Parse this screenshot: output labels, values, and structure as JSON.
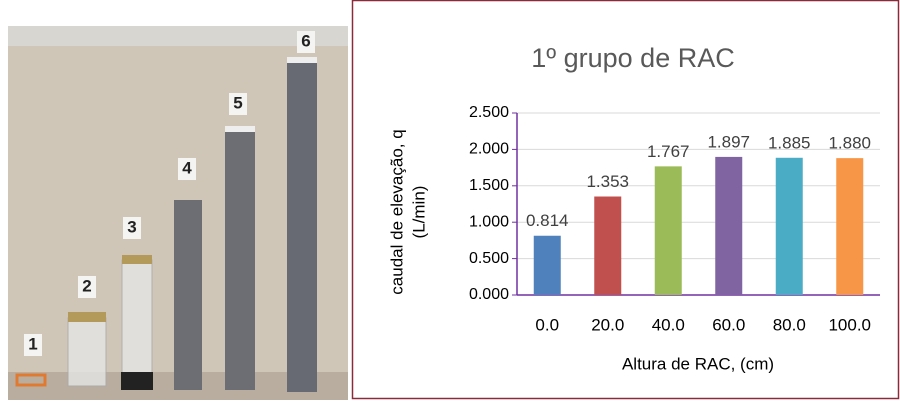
{
  "photo": {
    "labels": [
      "1",
      "2",
      "3",
      "4",
      "5",
      "6"
    ]
  },
  "chart_data": {
    "type": "bar",
    "title": "1º grupo de RAC",
    "x_label": "Altura de RAC, (cm)",
    "y_label": [
      "caudal de elevação, q",
      "(L/min)"
    ],
    "categories": [
      "0.0",
      "20.0",
      "40.0",
      "60.0",
      "80.0",
      "100.0"
    ],
    "values": [
      0.814,
      1.353,
      1.767,
      1.897,
      1.885,
      1.88
    ],
    "value_labels": [
      "0.814",
      "1.353",
      "1.767",
      "1.897",
      "1.885",
      "1.880"
    ],
    "colors": [
      "#4f81bd",
      "#c0504d",
      "#9bbb59",
      "#8064a2",
      "#4bacc6",
      "#f79646"
    ],
    "ylim": [
      0,
      2.5
    ],
    "yticks": [
      {
        "value": 0,
        "label": "0.000"
      },
      {
        "value": 0.5,
        "label": "0.500"
      },
      {
        "value": 1,
        "label": "1.000"
      },
      {
        "value": 1.5,
        "label": "1.500"
      },
      {
        "value": 2,
        "label": "2.000"
      },
      {
        "value": 2.5,
        "label": "2.500"
      }
    ],
    "grid": true
  }
}
